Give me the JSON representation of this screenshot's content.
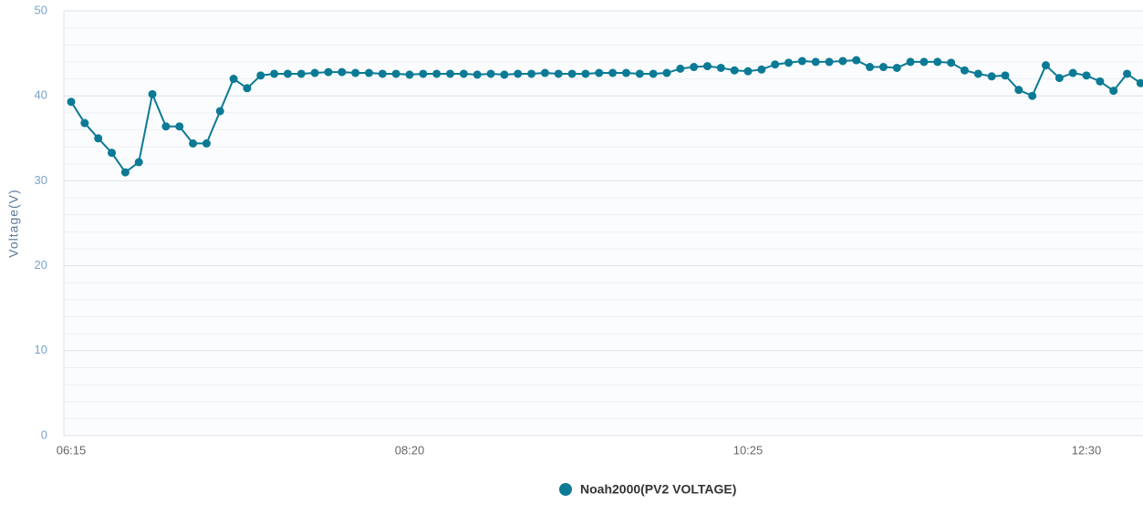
{
  "chart_data": {
    "type": "line",
    "y_label": "Voltage(V)",
    "categories": [
      "06:15",
      null,
      null,
      null,
      null,
      null,
      null,
      null,
      null,
      null,
      null,
      null,
      null,
      null,
      null,
      null,
      null,
      null,
      null,
      null,
      null,
      null,
      null,
      null,
      null,
      "08:20",
      null,
      null,
      null,
      null,
      null,
      null,
      null,
      null,
      null,
      null,
      null,
      null,
      null,
      null,
      null,
      null,
      null,
      null,
      null,
      null,
      null,
      null,
      null,
      null,
      "10:25",
      null,
      null,
      null,
      null,
      null,
      null,
      null,
      null,
      null,
      null,
      null,
      null,
      null,
      null,
      null,
      null,
      null,
      null,
      null,
      null,
      null,
      null,
      null,
      null,
      "12:30",
      null,
      null,
      null,
      null
    ],
    "series": [
      {
        "name": "Noah2000(PV2 VOLTAGE)",
        "color": "#0b7a95",
        "values": [
          39.3,
          36.8,
          35.0,
          33.3,
          31.0,
          32.2,
          40.2,
          36.4,
          36.4,
          34.4,
          34.4,
          38.2,
          42.0,
          40.9,
          42.4,
          42.6,
          42.6,
          42.6,
          42.7,
          42.8,
          42.8,
          42.7,
          42.7,
          42.6,
          42.6,
          42.5,
          42.6,
          42.6,
          42.6,
          42.6,
          42.5,
          42.6,
          42.5,
          42.6,
          42.6,
          42.7,
          42.6,
          42.6,
          42.6,
          42.7,
          42.7,
          42.7,
          42.6,
          42.6,
          42.7,
          43.2,
          43.4,
          43.5,
          43.3,
          43.0,
          42.9,
          43.1,
          43.7,
          43.9,
          44.1,
          44.0,
          44.0,
          44.1,
          44.2,
          43.4,
          43.4,
          43.3,
          44.0,
          44.0,
          44.0,
          43.9,
          43.0,
          42.6,
          42.3,
          42.4,
          40.7,
          40.0,
          43.6,
          42.1,
          42.7,
          42.4,
          41.7,
          40.6,
          42.6,
          41.5
        ]
      }
    ],
    "ylim": [
      0,
      50
    ],
    "yticks": [
      0,
      10,
      20,
      30,
      40,
      50
    ],
    "minor_yticks": [
      2,
      4,
      6,
      8,
      12,
      14,
      16,
      18,
      22,
      24,
      26,
      28,
      32,
      34,
      36,
      38,
      42,
      44,
      46,
      48
    ],
    "grid": true,
    "legend": "bottom"
  }
}
